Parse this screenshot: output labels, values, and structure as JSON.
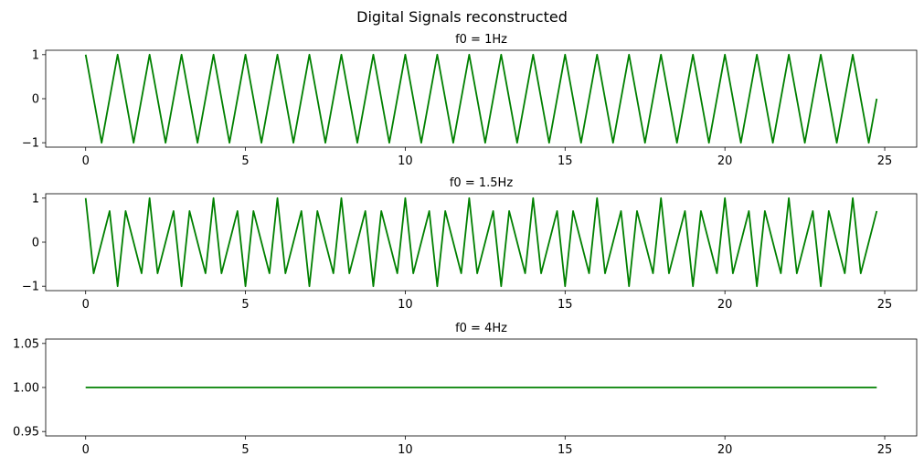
{
  "figure": {
    "title": "Digital Signals reconstructed"
  },
  "chart_data": [
    {
      "type": "line",
      "title": "f0 = 1Hz",
      "xlabel": "",
      "ylabel": "",
      "xlim": [
        -1.25,
        26.0
      ],
      "ylim": [
        -1.1,
        1.1
      ],
      "xticks": [
        0,
        5,
        10,
        15,
        20,
        25
      ],
      "yticks": [
        -1,
        0,
        1
      ],
      "ytick_labels": [
        "−1",
        "0",
        "1"
      ],
      "grid": false,
      "series": [
        {
          "color": "#008000",
          "x": [
            0,
            0.5,
            1,
            1.5,
            2,
            2.5,
            3,
            3.5,
            4,
            4.5,
            5,
            5.5,
            6,
            6.5,
            7,
            7.5,
            8,
            8.5,
            9,
            9.5,
            10,
            10.5,
            11,
            11.5,
            12,
            12.5,
            13,
            13.5,
            14,
            14.5,
            15,
            15.5,
            16,
            16.5,
            17,
            17.5,
            18,
            18.5,
            19,
            19.5,
            20,
            20.5,
            21,
            21.5,
            22,
            22.5,
            23,
            23.5,
            24,
            24.5,
            24.75
          ],
          "y": [
            1,
            -1,
            1,
            -1,
            1,
            -1,
            1,
            -1,
            1,
            -1,
            1,
            -1,
            1,
            -1,
            1,
            -1,
            1,
            -1,
            1,
            -1,
            1,
            -1,
            1,
            -1,
            1,
            -1,
            1,
            -1,
            1,
            -1,
            1,
            -1,
            1,
            -1,
            1,
            -1,
            1,
            -1,
            1,
            -1,
            1,
            -1,
            1,
            -1,
            1,
            -1,
            1,
            -1,
            1,
            -1,
            0
          ]
        }
      ]
    },
    {
      "type": "line",
      "title": "f0 = 1.5Hz",
      "xlabel": "",
      "ylabel": "",
      "xlim": [
        -1.25,
        26.0
      ],
      "ylim": [
        -1.1,
        1.1
      ],
      "xticks": [
        0,
        5,
        10,
        15,
        20,
        25
      ],
      "yticks": [
        -1,
        0,
        1
      ],
      "ytick_labels": [
        "−1",
        "0",
        "1"
      ],
      "grid": false,
      "series": [
        {
          "color": "#008000",
          "x": [
            0,
            0.25,
            0.75,
            1,
            1.25,
            1.75,
            2,
            2.25,
            2.75,
            3,
            3.25,
            3.75,
            4,
            4.25,
            4.75,
            5,
            5.25,
            5.75,
            6,
            6.25,
            6.75,
            7,
            7.25,
            7.75,
            8,
            8.25,
            8.75,
            9,
            9.25,
            9.75,
            10,
            10.25,
            10.75,
            11,
            11.25,
            11.75,
            12,
            12.25,
            12.75,
            13,
            13.25,
            13.75,
            14,
            14.25,
            14.75,
            15,
            15.25,
            15.75,
            16,
            16.25,
            16.75,
            17,
            17.25,
            17.75,
            18,
            18.25,
            18.75,
            19,
            19.25,
            19.75,
            20,
            20.25,
            20.75,
            21,
            21.25,
            21.75,
            22,
            22.25,
            22.75,
            23,
            23.25,
            23.75,
            24,
            24.25,
            24.75
          ],
          "y": [
            1,
            -0.707,
            0.707,
            -1,
            0.707,
            -0.707,
            1,
            -0.707,
            0.707,
            -1,
            0.707,
            -0.707,
            1,
            -0.707,
            0.707,
            -1,
            0.707,
            -0.707,
            1,
            -0.707,
            0.707,
            -1,
            0.707,
            -0.707,
            1,
            -0.707,
            0.707,
            -1,
            0.707,
            -0.707,
            1,
            -0.707,
            0.707,
            -1,
            0.707,
            -0.707,
            1,
            -0.707,
            0.707,
            -1,
            0.707,
            -0.707,
            1,
            -0.707,
            0.707,
            -1,
            0.707,
            -0.707,
            1,
            -0.707,
            0.707,
            -1,
            0.707,
            -0.707,
            1,
            -0.707,
            0.707,
            -1,
            0.707,
            -0.707,
            1,
            -0.707,
            0.707,
            -1,
            0.707,
            -0.707,
            1,
            -0.707,
            0.707,
            -1,
            0.707,
            -0.707,
            1,
            -0.707,
            0.707
          ]
        }
      ]
    },
    {
      "type": "line",
      "title": "f0 = 4Hz",
      "xlabel": "",
      "ylabel": "",
      "xlim": [
        -1.25,
        26.0
      ],
      "ylim": [
        0.945,
        1.055
      ],
      "xticks": [
        0,
        5,
        10,
        15,
        20,
        25
      ],
      "yticks": [
        0.95,
        1.0,
        1.05
      ],
      "ytick_labels": [
        "0.95",
        "1.00",
        "1.05"
      ],
      "grid": false,
      "series": [
        {
          "color": "#008000",
          "x": [
            0,
            24.75
          ],
          "y": [
            1,
            1
          ]
        }
      ]
    }
  ]
}
